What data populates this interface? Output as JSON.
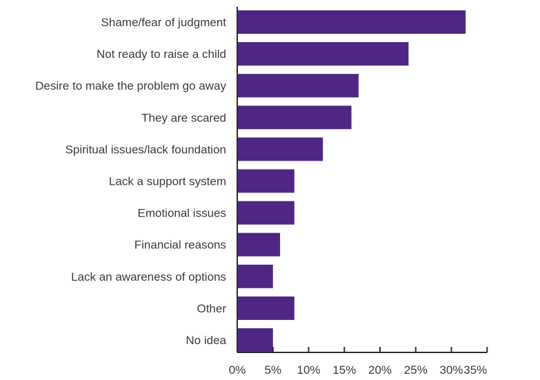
{
  "chart_data": {
    "type": "bar",
    "orientation": "horizontal",
    "categories": [
      "Shame/fear of judgment",
      "Not ready to raise a child",
      "Desire to make the problem go away",
      "They are scared",
      "Spiritual issues/lack foundation",
      "Lack a support system",
      "Emotional issues",
      "Financial reasons",
      "Lack an awareness of options",
      "Other",
      "No idea"
    ],
    "values": [
      32,
      24,
      17,
      16,
      12,
      8,
      8,
      6,
      5,
      8,
      5
    ],
    "xlim": [
      0,
      35
    ],
    "x_ticks": [
      0,
      5,
      10,
      15,
      20,
      25,
      30,
      35
    ],
    "x_tick_labels": [
      "0%",
      "5%",
      "10%",
      "15%",
      "20%",
      "25%",
      "30%",
      "35%"
    ],
    "title": "",
    "xlabel": "",
    "ylabel": "",
    "grid": false,
    "colors": {
      "bar": "#4f2683",
      "axis": "#2b2b2b",
      "text": "#3a3a3a"
    }
  }
}
